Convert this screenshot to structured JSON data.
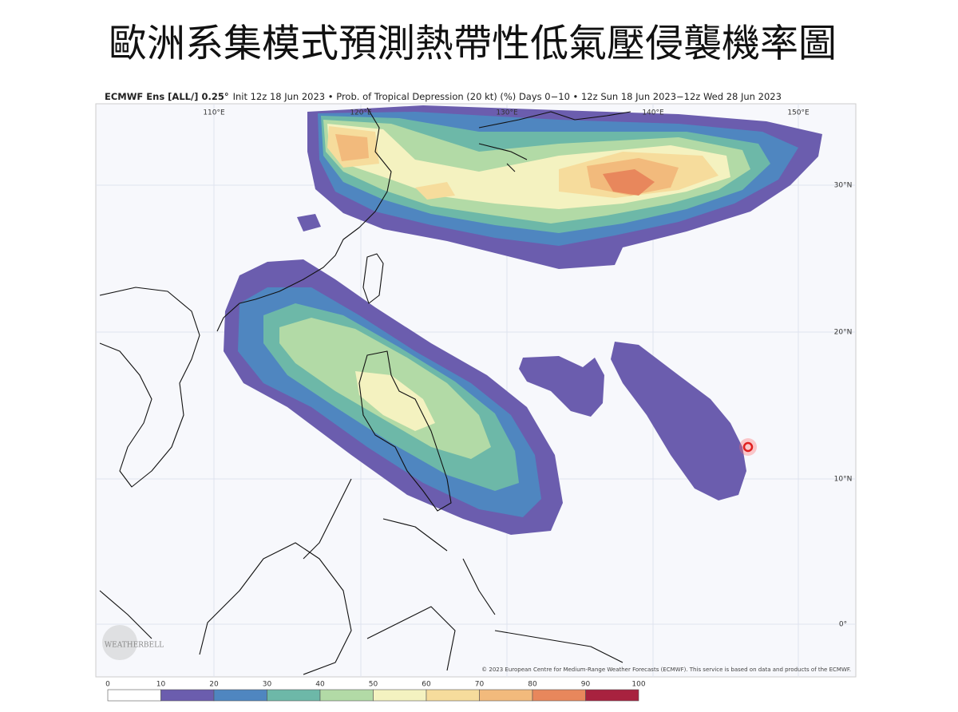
{
  "title": "歐洲系集模式預測熱帶性低氣壓侵襲機率圖",
  "map": {
    "header": {
      "model": "ECMWF Ens [ALL/] 0.25°",
      "rest": "Init 12z 18 Jun 2023 • Prob. of Tropical Depression (20 kt) (%) Days 0−10 • 12z Sun 18 Jun 2023−12z Wed 28 Jun 2023"
    },
    "lon_labels": [
      "110°E",
      "120°E",
      "130°E",
      "140°E",
      "150°E"
    ],
    "lat_labels": [
      "30°N",
      "20°N",
      "10°N",
      "0°"
    ],
    "logo": "WEATHERBELL",
    "copyright": "© 2023 European Centre for Medium-Range Weather Forecasts (ECMWF). This service is based on data and products of the ECMWF."
  },
  "legend": {
    "ticks": [
      0,
      10,
      20,
      30,
      40,
      50,
      60,
      70,
      80,
      90,
      100
    ],
    "colors": [
      "#ffffff",
      "#6b5dae",
      "#4f86c0",
      "#6db8a8",
      "#b2daa6",
      "#f4f2c0",
      "#f6dc9c",
      "#f2ba7c",
      "#e8875c",
      "#a8223f"
    ]
  }
}
